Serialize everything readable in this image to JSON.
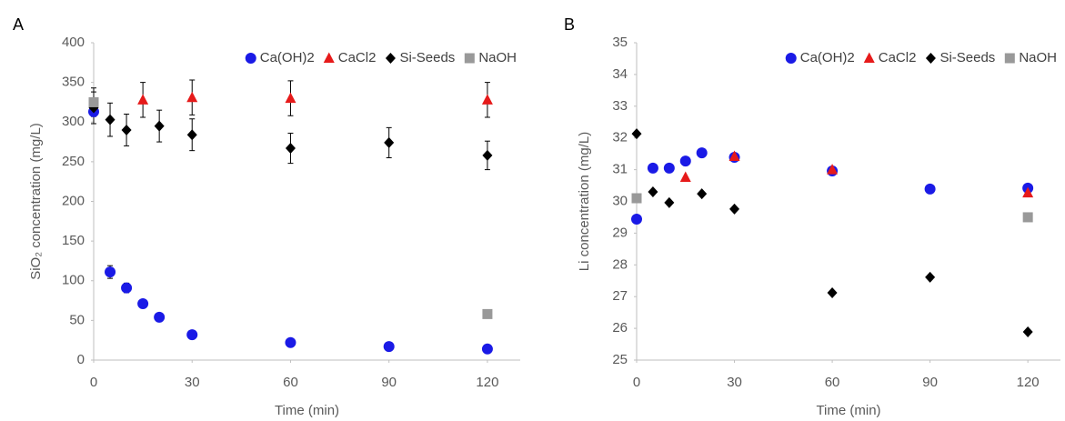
{
  "chart_data": [
    {
      "type": "scatter",
      "panel_label": "A",
      "x_label": "Time (min)",
      "y_label": "SiO₂ concentration (mg/L)",
      "xlim": [
        0,
        130
      ],
      "xticks": [
        0,
        30,
        60,
        90,
        120
      ],
      "ylim": [
        0,
        400
      ],
      "yticks": [
        0,
        50,
        100,
        150,
        200,
        250,
        300,
        350,
        400
      ],
      "legend": "upper right",
      "series": [
        {
          "name": "Ca(OH)2",
          "color": "#1a1ae6",
          "marker": "circle",
          "x": [
            0,
            5,
            10,
            15,
            20,
            30,
            60,
            90,
            120
          ],
          "values": [
            313,
            111,
            91,
            71,
            54,
            32,
            22,
            17,
            14
          ],
          "errors": [
            3,
            8,
            6,
            3,
            2,
            2,
            2,
            2,
            2
          ]
        },
        {
          "name": "CaCl2",
          "color": "#e61a1a",
          "marker": "triangle",
          "x": [
            15,
            30,
            60,
            120
          ],
          "values": [
            328,
            331,
            330,
            328
          ],
          "errors": [
            22,
            22,
            22,
            22
          ]
        },
        {
          "name": "Si-Seeds",
          "color": "#000000",
          "marker": "diamond",
          "x": [
            0,
            5,
            10,
            20,
            30,
            60,
            90,
            120
          ],
          "values": [
            318,
            303,
            290,
            295,
            284,
            267,
            274,
            258
          ],
          "errors": [
            20,
            21,
            20,
            20,
            20,
            19,
            19,
            18
          ]
        },
        {
          "name": "NaOH",
          "color": "#999999",
          "marker": "square",
          "x": [
            0,
            120
          ],
          "values": [
            325,
            58
          ],
          "errors": [
            18,
            3
          ]
        }
      ]
    },
    {
      "type": "scatter",
      "panel_label": "B",
      "x_label": "Time (min)",
      "y_label": "Li concentration (mg/L)",
      "xlim": [
        0,
        130
      ],
      "xticks": [
        0,
        30,
        60,
        90,
        120
      ],
      "ylim": [
        25,
        35
      ],
      "yticks": [
        25,
        26,
        27,
        28,
        29,
        30,
        31,
        32,
        33,
        34,
        35
      ],
      "legend": "upper right",
      "series": [
        {
          "name": "Ca(OH)2",
          "color": "#1a1ae6",
          "marker": "circle",
          "x": [
            0,
            5,
            10,
            15,
            20,
            30,
            60,
            90,
            120
          ],
          "values": [
            29.44,
            31.05,
            31.05,
            31.27,
            31.53,
            31.39,
            30.96,
            30.39,
            30.42
          ]
        },
        {
          "name": "CaCl2",
          "color": "#e61a1a",
          "marker": "triangle",
          "x": [
            15,
            30,
            60,
            120
          ],
          "values": [
            30.76,
            31.42,
            31.0,
            30.27
          ]
        },
        {
          "name": "Si-Seeds",
          "color": "#000000",
          "marker": "diamond",
          "x": [
            0,
            5,
            10,
            20,
            30,
            60,
            90,
            120
          ],
          "values": [
            32.13,
            30.3,
            29.96,
            30.24,
            29.76,
            27.12,
            27.61,
            25.89
          ]
        },
        {
          "name": "NaOH",
          "color": "#999999",
          "marker": "square",
          "x": [
            0,
            120
          ],
          "values": [
            30.1,
            29.5
          ]
        }
      ]
    }
  ]
}
